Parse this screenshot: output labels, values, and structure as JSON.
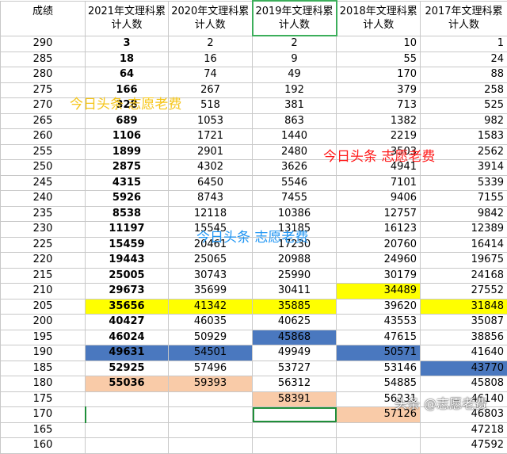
{
  "header": {
    "score_label": "成绩",
    "years": [
      "2021年文理科累\n计人数",
      "2020年文理科累\n计人数",
      "2019年文理科累\n计人数",
      "2018年文理科累\n计人数",
      "2017年文理科累\n计人数"
    ]
  },
  "rows": [
    {
      "score": "290",
      "v": [
        "3",
        "2",
        "2",
        "10",
        "1"
      ]
    },
    {
      "score": "285",
      "v": [
        "18",
        "16",
        "9",
        "55",
        "24"
      ]
    },
    {
      "score": "280",
      "v": [
        "64",
        "74",
        "49",
        "170",
        "88"
      ]
    },
    {
      "score": "275",
      "v": [
        "166",
        "267",
        "192",
        "379",
        "258"
      ]
    },
    {
      "score": "270",
      "v": [
        "328",
        "518",
        "381",
        "713",
        "525"
      ]
    },
    {
      "score": "265",
      "v": [
        "689",
        "1053",
        "863",
        "1382",
        "982"
      ]
    },
    {
      "score": "260",
      "v": [
        "1106",
        "1721",
        "1440",
        "2219",
        "1583"
      ]
    },
    {
      "score": "255",
      "v": [
        "1899",
        "2901",
        "2480",
        "3503",
        "2562"
      ]
    },
    {
      "score": "250",
      "v": [
        "2875",
        "4302",
        "3626",
        "4941",
        "3914"
      ]
    },
    {
      "score": "245",
      "v": [
        "4315",
        "6450",
        "5546",
        "7101",
        "5339"
      ]
    },
    {
      "score": "240",
      "v": [
        "5926",
        "8743",
        "7455",
        "9406",
        "7155"
      ]
    },
    {
      "score": "235",
      "v": [
        "8538",
        "12118",
        "10386",
        "12757",
        "9842"
      ]
    },
    {
      "score": "230",
      "v": [
        "11197",
        "15545",
        "13185",
        "16123",
        "12389"
      ]
    },
    {
      "score": "225",
      "v": [
        "15459",
        "20461",
        "17230",
        "20760",
        "16414"
      ]
    },
    {
      "score": "220",
      "v": [
        "19443",
        "25065",
        "20988",
        "24960",
        "19675"
      ]
    },
    {
      "score": "215",
      "v": [
        "25005",
        "30743",
        "25990",
        "30179",
        "24168"
      ]
    },
    {
      "score": "210",
      "v": [
        "29673",
        "35699",
        "30411",
        "34489",
        "27552"
      ]
    },
    {
      "score": "205",
      "v": [
        "35656",
        "41342",
        "35885",
        "39620",
        "31848"
      ]
    },
    {
      "score": "200",
      "v": [
        "40427",
        "46035",
        "40625",
        "43553",
        "35087"
      ]
    },
    {
      "score": "195",
      "v": [
        "46024",
        "50929",
        "45868",
        "47615",
        "38856"
      ]
    },
    {
      "score": "190",
      "v": [
        "49631",
        "54501",
        "49949",
        "50571",
        "41640"
      ]
    },
    {
      "score": "185",
      "v": [
        "52925",
        "57496",
        "53727",
        "53146",
        "43770"
      ]
    },
    {
      "score": "180",
      "v": [
        "55036",
        "59393",
        "56312",
        "54885",
        "45808"
      ]
    },
    {
      "score": "175",
      "v": [
        "",
        "",
        "58391",
        "56231",
        "46140"
      ]
    },
    {
      "score": "170",
      "v": [
        "",
        "",
        "",
        "57126",
        "46803"
      ]
    },
    {
      "score": "165",
      "v": [
        "",
        "",
        "",
        "",
        "47218"
      ]
    },
    {
      "score": "160",
      "v": [
        "",
        "",
        "",
        "",
        "47592"
      ]
    }
  ],
  "watermarks": {
    "w1": "今日头条  志愿老费",
    "w2": "今日头条  志愿老费",
    "w3": "今日头条  志愿老费",
    "w4": "头条 @志愿老费"
  },
  "colors": {
    "yellow": "#ffff00",
    "blue": "#4a78bf",
    "peach": "#f9cba8",
    "selection_green": "#1f8f3a"
  }
}
